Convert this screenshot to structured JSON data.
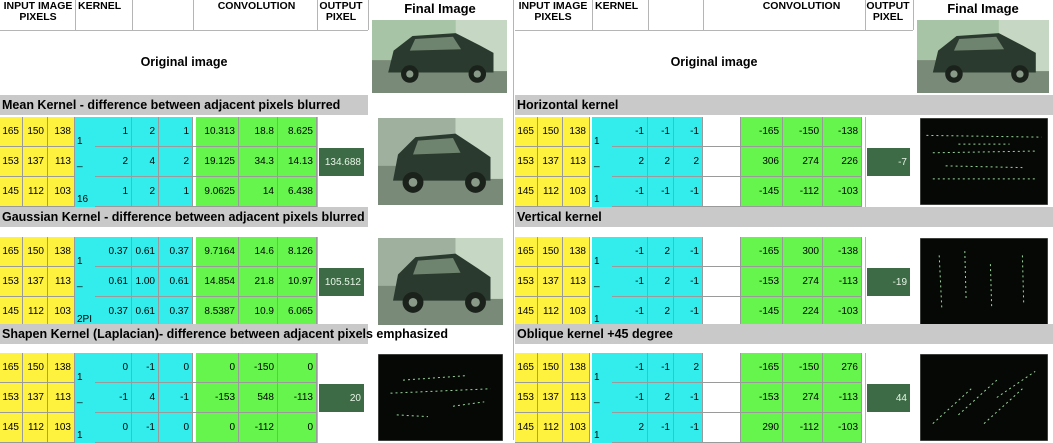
{
  "headers": {
    "input_pixels": "INPUT IMAGE PIXELS",
    "kernel": "KERNEL",
    "convolution": "CONVOLUTION",
    "output_pixel": "OUTPUT PIXEL",
    "final_image": "Final Image"
  },
  "original_label": "Original image",
  "input_pixels": [
    [
      "165",
      "150",
      "138"
    ],
    [
      "153",
      "137",
      "113"
    ],
    [
      "145",
      "112",
      "103"
    ]
  ],
  "left": {
    "sections": [
      {
        "title": "Mean Kernel - difference between adjacent pixels blurred",
        "kernel_prefix": [
          "1",
          "_",
          "16"
        ],
        "kernel": [
          [
            "1",
            "2",
            "1"
          ],
          [
            "2",
            "4",
            "2"
          ],
          [
            "1",
            "2",
            "1"
          ]
        ],
        "convolution": [
          [
            "10.313",
            "18.8",
            "8.625"
          ],
          [
            "19.125",
            "34.3",
            "14.13"
          ],
          [
            "9.0625",
            "14",
            "6.438"
          ]
        ],
        "output": "134.688"
      },
      {
        "title": "Gaussian Kernel - difference between adjacent pixels blurred",
        "kernel_prefix": [
          "1",
          "_",
          "2PI"
        ],
        "kernel": [
          [
            "0.37",
            "0.61",
            "0.37"
          ],
          [
            "0.61",
            "1.00",
            "0.61"
          ],
          [
            "0.37",
            "0.61",
            "0.37"
          ]
        ],
        "convolution": [
          [
            "9.7164",
            "14.6",
            "8.126"
          ],
          [
            "14.854",
            "21.8",
            "10.97"
          ],
          [
            "8.5387",
            "10.9",
            "6.065"
          ]
        ],
        "output": "105.512"
      },
      {
        "title": "Shapen Kernel (Laplacian)- difference between adjacent pixels emphasized",
        "kernel_prefix": [
          "1",
          "_",
          "1"
        ],
        "kernel": [
          [
            "0",
            "-1",
            "0"
          ],
          [
            "-1",
            "4",
            "-1"
          ],
          [
            "0",
            "-1",
            "0"
          ]
        ],
        "convolution": [
          [
            "0",
            "-150",
            "0"
          ],
          [
            "-153",
            "548",
            "-113"
          ],
          [
            "0",
            "-112",
            "0"
          ]
        ],
        "output": "20"
      }
    ]
  },
  "right": {
    "sections": [
      {
        "title": "Horizontal kernel",
        "kernel_prefix": [
          "1",
          "_",
          "1"
        ],
        "kernel": [
          [
            "-1",
            "-1",
            "-1"
          ],
          [
            "2",
            "2",
            "2"
          ],
          [
            "-1",
            "-1",
            "-1"
          ]
        ],
        "convolution": [
          [
            "-165",
            "-150",
            "-138"
          ],
          [
            "306",
            "274",
            "226"
          ],
          [
            "-145",
            "-112",
            "-103"
          ]
        ],
        "output": "-7"
      },
      {
        "title": "Vertical kernel",
        "kernel_prefix": [
          "1",
          "_",
          "1"
        ],
        "kernel": [
          [
            "-1",
            "2",
            "-1"
          ],
          [
            "-1",
            "2",
            "-1"
          ],
          [
            "-1",
            "2",
            "-1"
          ]
        ],
        "convolution": [
          [
            "-165",
            "300",
            "-138"
          ],
          [
            "-153",
            "274",
            "-113"
          ],
          [
            "-145",
            "224",
            "-103"
          ]
        ],
        "output": "-19"
      },
      {
        "title": "Oblique kernel +45 degree",
        "kernel_prefix": [
          "1",
          "_",
          "1"
        ],
        "kernel": [
          [
            "-1",
            "-1",
            "2"
          ],
          [
            "-1",
            "2",
            "-1"
          ],
          [
            "2",
            "-1",
            "-1"
          ]
        ],
        "convolution": [
          [
            "-165",
            "-150",
            "276"
          ],
          [
            "-153",
            "274",
            "-113"
          ],
          [
            "290",
            "-112",
            "-103"
          ]
        ],
        "output": "44"
      }
    ]
  },
  "colors": {
    "input": "#fff23f",
    "kernel": "#33eded",
    "convolution": "#66f54d",
    "output": "#3d6b45",
    "band": "#c9c9c9"
  }
}
